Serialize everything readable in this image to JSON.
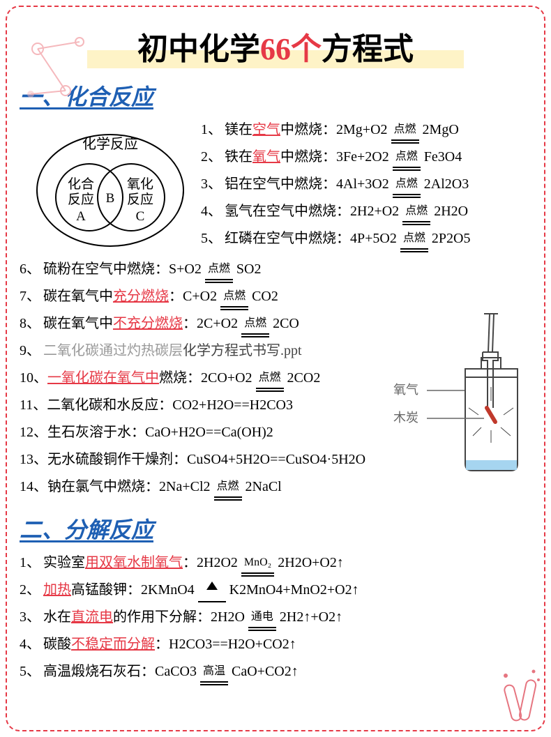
{
  "title": {
    "t1": "初中化学",
    "t2": "66个",
    "t3": "方程式"
  },
  "section1": {
    "heading": "一、化合反应",
    "venn": {
      "outer": "化学反应",
      "leftTop": "化合",
      "leftBot": "反应",
      "leftTag": "A",
      "mid": "B",
      "rightTop": "氧化",
      "rightBot": "反应",
      "rightTag": "C"
    },
    "rows": [
      {
        "n": "1、",
        "pre": "镁在",
        "hl": "空气",
        "post": "中燃烧：",
        "eq1": "2Mg+O2",
        "cond": "点燃",
        "eq2": "2MgO"
      },
      {
        "n": "2、",
        "pre": "铁在",
        "hl": "氧气",
        "post": "中燃烧：",
        "eq1": "3Fe+2O2",
        "cond": "点燃",
        "eq2": "Fe3O4"
      },
      {
        "n": "3、",
        "pre": "铝在空气中燃烧：",
        "hl": "",
        "post": "",
        "eq1": "4Al+3O2",
        "cond": "点燃",
        "eq2": "2Al2O3"
      },
      {
        "n": "4、",
        "pre": "氢气在空气中燃烧：",
        "hl": "",
        "post": "",
        "eq1": "2H2+O2",
        "cond": "点燃",
        "eq2": "2H2O"
      },
      {
        "n": "5、",
        "pre": "红磷在空气中燃烧：",
        "hl": "",
        "post": "",
        "eq1": "4P+5O2",
        "cond": "点燃",
        "eq2": "2P2O5"
      },
      {
        "n": "6、",
        "pre": "硫粉在空气中燃烧：",
        "hl": "",
        "post": "",
        "eq1": "S+O2",
        "cond": "点燃",
        "eq2": "SO2"
      },
      {
        "n": "7、",
        "pre": "碳在氧气中",
        "hl": "充分燃烧",
        "post": "：",
        "eq1": "C+O2",
        "cond": "点燃",
        "eq2": "CO2"
      },
      {
        "n": "8、",
        "pre": "碳在氧气中",
        "hl": "不充分燃烧",
        "post": "：",
        "eq1": "2C+O2",
        "cond": "点燃",
        "eq2": "2CO"
      },
      {
        "n": "9、",
        "faded": "二氧化碳通过灼热碳层",
        "overlay": "化学方程式书写.ppt"
      },
      {
        "n": "10、",
        "pre": "",
        "hl": "一氧化碳在氧气中",
        "post": "燃烧：",
        "eq1": "2CO+O2",
        "cond": "点燃",
        "eq2": "2CO2"
      },
      {
        "n": "11、",
        "pre": "二氧化碳和水反应：",
        "eq": "CO2+H2O==H2CO3"
      },
      {
        "n": "12、",
        "pre": "生石灰溶于水：",
        "eq": "CaO+H2O==Ca(OH)2"
      },
      {
        "n": "13、",
        "pre": "无水硫酸铜作干燥剂：",
        "eq": "CuSO4+5H2O==CuSO4·5H2O"
      },
      {
        "n": "14、",
        "pre": "钠在氯气中燃烧：",
        "eq1": "2Na+Cl2",
        "cond": "点燃",
        "eq2": "2NaCl"
      }
    ]
  },
  "section2": {
    "heading": "二、分解反应",
    "rows": [
      {
        "n": "1、",
        "pre": "实验室",
        "hl": "用双氧水制氧气",
        "post": "：",
        "eq1": "2H2O2",
        "cond": "MnO₂",
        "eq2": "2H2O+O2↑"
      },
      {
        "n": "2、",
        "pre": "",
        "hl": "加热",
        "post": "高锰酸钾：",
        "eq1": "2KMnO4",
        "tri": true,
        "eq2": "K2MnO4+MnO2+O2↑"
      },
      {
        "n": "3、",
        "pre": "水在",
        "hl": "直流电",
        "post": "的作用下分解：",
        "eq1": "2H2O",
        "cond": "通电",
        "eq2": "2H2↑+O2↑"
      },
      {
        "n": "4、",
        "pre": "碳酸",
        "hl": "不稳定而分解",
        "post": "：",
        "eq": "H2CO3==H2O+CO2↑"
      },
      {
        "n": "5、",
        "pre": "高温煅烧石灰石：",
        "eq1": "CaCO3",
        "cond": "高温",
        "eq2": "CaO+CO2↑"
      }
    ]
  },
  "expLabels": {
    "l1": "氧气",
    "l2": "木炭"
  },
  "colors": {
    "red": "#e63946",
    "blue": "#1e5fb3",
    "border": "#e63946",
    "faded": "#999",
    "highlight": "#fef3c7"
  }
}
